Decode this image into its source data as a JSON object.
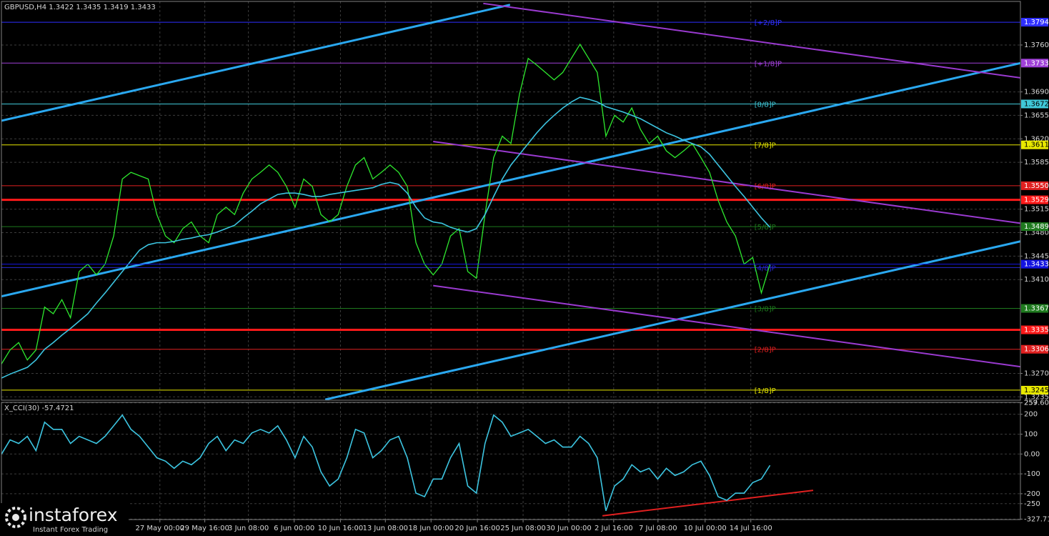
{
  "chart_data": [
    {
      "type": "line",
      "title": "GBPUSD,H4  1.3422 1.3435 1.3419 1.3433",
      "xlim": [
        0,
        118
      ],
      "ylim": [
        1.323,
        1.3825
      ],
      "yticks": [
        {
          "value": 1.376,
          "label": "1.3760"
        },
        {
          "value": 1.369,
          "label": "1.3690"
        },
        {
          "value": 1.3655,
          "label": "1.3655"
        },
        {
          "value": 1.362,
          "label": "1.3620"
        },
        {
          "value": 1.3585,
          "label": "1.3585"
        },
        {
          "value": 1.3515,
          "label": "1.3515"
        },
        {
          "value": 1.348,
          "label": "1.3480"
        },
        {
          "value": 1.3445,
          "label": "1.3445"
        },
        {
          "value": 1.341,
          "label": "1.3410"
        },
        {
          "value": 1.327,
          "label": "1.3270"
        },
        {
          "value": 1.3235,
          "label": "1.3235"
        }
      ],
      "grid": true,
      "series": [
        {
          "color": "#2ee82e",
          "values": [
            1.3284,
            1.3305,
            1.3316,
            1.329,
            1.3305,
            1.3369,
            1.3359,
            1.338,
            1.3353,
            1.3422,
            1.3433,
            1.3417,
            1.3433,
            1.3475,
            1.356,
            1.357,
            1.3565,
            1.356,
            1.3507,
            1.3475,
            1.3465,
            1.3486,
            1.3496,
            1.3475,
            1.3465,
            1.3507,
            1.3518,
            1.3507,
            1.3539,
            1.356,
            1.357,
            1.3581,
            1.357,
            1.3549,
            1.3518,
            1.356,
            1.3549,
            1.3507,
            1.3496,
            1.3507,
            1.3549,
            1.3581,
            1.3592,
            1.356,
            1.357,
            1.3581,
            1.357,
            1.3549,
            1.3465,
            1.3433,
            1.3417,
            1.3433,
            1.3475,
            1.3486,
            1.3422,
            1.3412,
            1.3507,
            1.3592,
            1.3624,
            1.3613,
            1.3687,
            1.374,
            1.373,
            1.3719,
            1.3708,
            1.3719,
            1.374,
            1.3761,
            1.374,
            1.3719,
            1.3624,
            1.3655,
            1.3645,
            1.3666,
            1.3634,
            1.3613,
            1.3624,
            1.3602,
            1.3592,
            1.3602,
            1.3613,
            1.3592,
            1.357,
            1.3528,
            1.3496,
            1.3475,
            1.3433,
            1.3443,
            1.339,
            1.3433
          ]
        },
        {
          "color": "#3cc4e0",
          "values": [
            1.3263,
            1.3269,
            1.3274,
            1.3279,
            1.329,
            1.3306,
            1.3316,
            1.3327,
            1.3337,
            1.3348,
            1.3359,
            1.3375,
            1.339,
            1.3406,
            1.3422,
            1.3438,
            1.3454,
            1.3462,
            1.3465,
            1.3465,
            1.3467,
            1.347,
            1.3472,
            1.3475,
            1.3477,
            1.3481,
            1.3486,
            1.3491,
            1.3502,
            1.3512,
            1.3523,
            1.353,
            1.3537,
            1.3539,
            1.3539,
            1.3537,
            1.3534,
            1.3534,
            1.3537,
            1.3539,
            1.3541,
            1.3543,
            1.3545,
            1.3547,
            1.3552,
            1.3555,
            1.3552,
            1.3539,
            1.3518,
            1.3502,
            1.3496,
            1.3494,
            1.3488,
            1.3484,
            1.3481,
            1.3486,
            1.3507,
            1.3534,
            1.356,
            1.3581,
            1.3597,
            1.3613,
            1.3629,
            1.3643,
            1.3655,
            1.3666,
            1.3675,
            1.3682,
            1.3679,
            1.3675,
            1.3668,
            1.3664,
            1.366,
            1.3655,
            1.365,
            1.3643,
            1.3636,
            1.3629,
            1.3624,
            1.3618,
            1.3613,
            1.3608,
            1.3597,
            1.3581,
            1.3565,
            1.3549,
            1.3534,
            1.3518,
            1.3502,
            1.3488
          ]
        }
      ],
      "levels": [
        {
          "value": 1.3794,
          "value_label": "1.3794",
          "label": "[+2/8]P",
          "color": "#2f2fff"
        },
        {
          "value": 1.3733,
          "value_label": "1.3733",
          "label": "[+1/8]P",
          "color": "#a040d8"
        },
        {
          "value": 1.3672,
          "value_label": "1.3672",
          "label": "[8/8]P",
          "color": "#40c8d8"
        },
        {
          "value": 1.3611,
          "value_label": "1.3611",
          "label": "[7/8]P",
          "color": "#e8e800"
        },
        {
          "value": 1.355,
          "value_label": "1.3550",
          "label": "[6/8]P",
          "color": "#e02020"
        },
        {
          "value": 1.3529,
          "value_label": "1.3529",
          "color": "#ff1a1a",
          "width": 3
        },
        {
          "value": 1.3489,
          "value_label": "1.3489",
          "label": "[5/8]P",
          "color": "#1e7a1e"
        },
        {
          "value": 1.3428,
          "label": "[4/8]P",
          "color": "#2828d0"
        },
        {
          "value": 1.3367,
          "value_label": "1.3367",
          "label": "[3/8]P",
          "color": "#1e7a1e"
        },
        {
          "value": 1.3335,
          "value_label": "1.3335",
          "color": "#ff1a1a",
          "width": 3
        },
        {
          "value": 1.3306,
          "value_label": "1.3306",
          "label": "[2/8]P",
          "color": "#e02020"
        },
        {
          "value": 1.3245,
          "value_label": "1.3245",
          "label": "[1/8]P",
          "color": "#e8e800"
        }
      ],
      "last": {
        "value": 1.3433,
        "label": "1.3433",
        "color": "#1414e0"
      },
      "lines": [
        {
          "x": [
            0,
            58.9
          ],
          "y": [
            1.3647,
            1.382
          ],
          "color": "#2aa8f0"
        },
        {
          "x": [
            0,
            118
          ],
          "y": [
            1.3385,
            1.3733
          ],
          "color": "#2aa8f0"
        },
        {
          "x": [
            37.5,
            118
          ],
          "y": [
            1.3231,
            1.3467
          ],
          "color": "#2aa8f0"
        },
        {
          "x": [
            55.8,
            118
          ],
          "y": [
            1.3822,
            1.3711
          ],
          "color": "#9a3ad0"
        },
        {
          "x": [
            50,
            118
          ],
          "y": [
            1.3616,
            1.3494
          ],
          "color": "#9a3ad0"
        },
        {
          "x": [
            50,
            118
          ],
          "y": [
            1.3401,
            1.328
          ],
          "color": "#9a3ad0"
        }
      ]
    },
    {
      "type": "line",
      "title": "X_CCI(30) -57.4721",
      "xlim": [
        0,
        118
      ],
      "ylim": [
        -330,
        260
      ],
      "yticks": [
        259,
        257.6065,
        200,
        100,
        {
          "value": 0,
          "label": "0.00"
        },
        -100,
        -200,
        -250,
        -327.719
      ],
      "grid": true,
      "xticks": [
        {
          "value": 18.35,
          "label": "27 May 00:00"
        },
        {
          "value": 23.55,
          "label": "29 May 16:00"
        },
        {
          "value": 28.6,
          "label": "3 Jun 08:00"
        },
        {
          "value": 33.9,
          "label": "6 Jun 00:00"
        },
        {
          "value": 39.26,
          "label": "10 Jun 16:00"
        },
        {
          "value": 44.46,
          "label": "13 Jun 08:00"
        },
        {
          "value": 49.75,
          "label": "18 Jun 00:00"
        },
        {
          "value": 55.12,
          "label": "20 Jun 16:00"
        },
        {
          "value": 60.41,
          "label": "25 Jun 08:00"
        },
        {
          "value": 65.7,
          "label": "30 Jun 00:00"
        },
        {
          "value": 70.9,
          "label": "2 Jul 16:00"
        },
        {
          "value": 76.03,
          "label": "7 Jul 08:00"
        },
        {
          "value": 81.49,
          "label": "10 Jul 00:00"
        },
        {
          "value": 86.78,
          "label": "14 Jul 16:00"
        }
      ],
      "series": [
        {
          "color": "#3cc4e0",
          "values": [
            -1,
            71,
            53,
            89,
            17,
            160,
            124,
            124,
            53,
            89,
            71,
            53,
            89,
            142,
            196,
            124,
            89,
            35,
            -19,
            -36,
            -72,
            -36,
            -54,
            -19,
            53,
            89,
            17,
            71,
            53,
            106,
            124,
            106,
            142,
            71,
            -19,
            89,
            35,
            -90,
            -161,
            -126,
            -19,
            124,
            106,
            -19,
            17,
            71,
            89,
            -19,
            -197,
            -215,
            -126,
            -126,
            -19,
            53,
            -161,
            -197,
            53,
            196,
            160,
            89,
            106,
            124,
            89,
            53,
            71,
            35,
            35,
            89,
            53,
            -19,
            -286,
            -161,
            -126,
            -54,
            -90,
            -72,
            -126,
            -72,
            -108,
            -90,
            -54,
            -36,
            -108,
            -215,
            -233,
            -197,
            -197,
            -144,
            -126,
            -57
          ]
        }
      ],
      "lines": [
        {
          "x": [
            69.6,
            94
          ],
          "y": [
            -311,
            -183
          ],
          "color": "#e02020"
        }
      ]
    }
  ],
  "branding": {
    "name": "instaforex",
    "tagline": "Instant Forex Trading"
  }
}
